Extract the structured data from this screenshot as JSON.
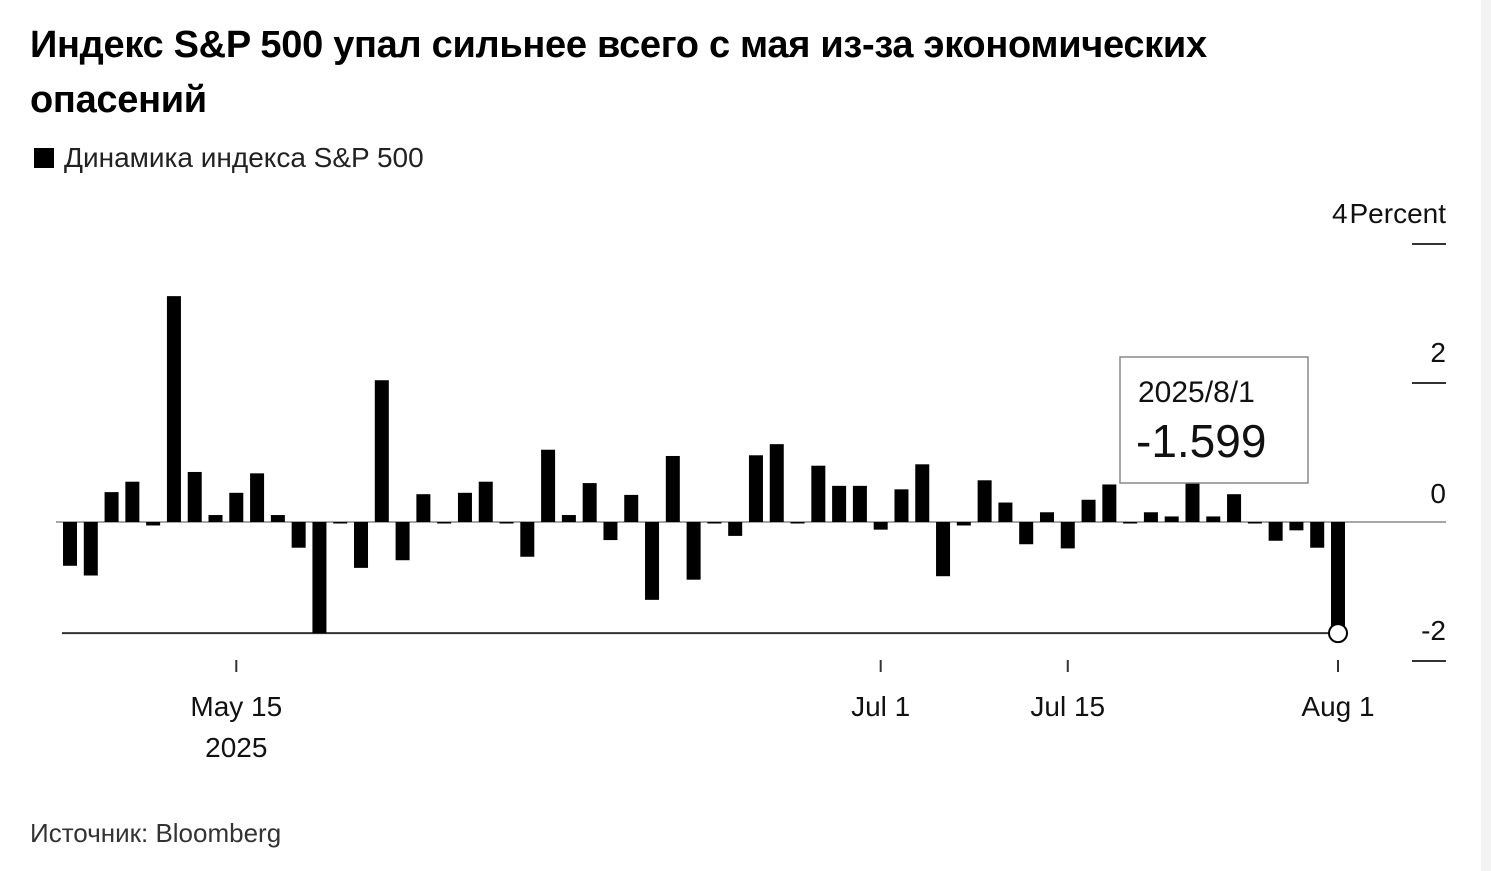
{
  "title": "Индекс S&P 500 упал сильнее всего с мая из-за экономических опасений",
  "legend": {
    "label": "Динамика индекса S&P 500",
    "color": "#000000"
  },
  "source": "Источник: Bloomberg",
  "tooltip": {
    "date": "2025/8/1",
    "value": "-1.599"
  },
  "chart_data": {
    "type": "bar",
    "ylabel": "Percent",
    "ylim": [
      -2,
      4
    ],
    "yticks": [
      {
        "value": 4,
        "label": "4"
      },
      {
        "value": 2,
        "label": "2"
      },
      {
        "value": 0,
        "label": "0"
      },
      {
        "value": -2,
        "label": "-2"
      }
    ],
    "xticks": [
      {
        "date": "2025-05-15",
        "label": "May 15",
        "sublabel": "2025"
      },
      {
        "date": "2025-07-01",
        "label": "Jul 1"
      },
      {
        "date": "2025-07-15",
        "label": "Jul 15"
      },
      {
        "date": "2025-08-01",
        "label": "Aug 1"
      }
    ],
    "reference_line": -1.599,
    "bar_color": "#000000",
    "dates": [
      "2025-05-05",
      "2025-05-06",
      "2025-05-07",
      "2025-05-08",
      "2025-05-09",
      "2025-05-12",
      "2025-05-13",
      "2025-05-14",
      "2025-05-15",
      "2025-05-16",
      "2025-05-19",
      "2025-05-20",
      "2025-05-21",
      "2025-05-22",
      "2025-05-23",
      "2025-05-27",
      "2025-05-28",
      "2025-05-29",
      "2025-05-30",
      "2025-06-02",
      "2025-06-03",
      "2025-06-04",
      "2025-06-05",
      "2025-06-06",
      "2025-06-09",
      "2025-06-10",
      "2025-06-11",
      "2025-06-12",
      "2025-06-13",
      "2025-06-16",
      "2025-06-17",
      "2025-06-18",
      "2025-06-20",
      "2025-06-23",
      "2025-06-24",
      "2025-06-25",
      "2025-06-26",
      "2025-06-27",
      "2025-06-30",
      "2025-07-01",
      "2025-07-02",
      "2025-07-03",
      "2025-07-07",
      "2025-07-08",
      "2025-07-09",
      "2025-07-10",
      "2025-07-11",
      "2025-07-14",
      "2025-07-15",
      "2025-07-16",
      "2025-07-17",
      "2025-07-18",
      "2025-07-21",
      "2025-07-22",
      "2025-07-23",
      "2025-07-24",
      "2025-07-25",
      "2025-07-28",
      "2025-07-29",
      "2025-07-30",
      "2025-07-31",
      "2025-08-01"
    ],
    "values": [
      -0.63,
      -0.77,
      0.43,
      0.58,
      -0.05,
      3.25,
      0.72,
      0.1,
      0.42,
      0.7,
      0.1,
      -0.37,
      -1.6,
      -0.02,
      -0.66,
      2.04,
      -0.55,
      0.4,
      0.0,
      0.42,
      0.58,
      0.0,
      -0.5,
      1.04,
      0.1,
      0.56,
      -0.26,
      0.39,
      -1.12,
      0.95,
      -0.83,
      0.0,
      -0.2,
      0.96,
      1.12,
      0.0,
      0.81,
      0.52,
      0.52,
      -0.11,
      0.47,
      0.83,
      -0.78,
      -0.05,
      0.6,
      0.28,
      -0.32,
      0.14,
      -0.38,
      0.32,
      0.54,
      0.0,
      0.14,
      0.08,
      0.58,
      0.08,
      0.4,
      -0.01,
      -0.27,
      -0.12,
      -0.37,
      -1.599
    ]
  }
}
